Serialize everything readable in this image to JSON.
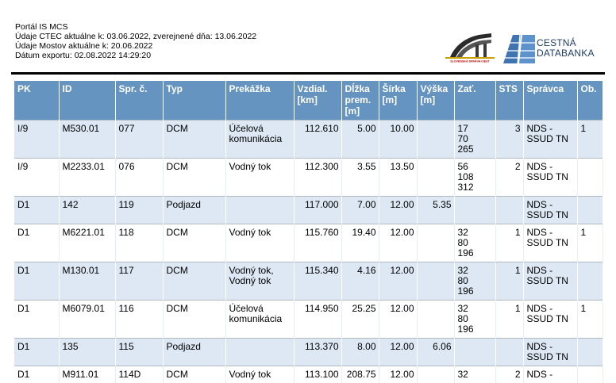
{
  "header": {
    "lines": [
      "Portál IS MCS",
      "Údaje CTEC aktuálne k: 03.06.2022, zverejnené dňa: 13.06.2022",
      "Údaje Mostov aktuálne k: 20.06.2022",
      "Dátum exportu: 02.08.2022 14:29:20"
    ]
  },
  "logos": {
    "sss_text": "SLOVENSKÁ SPRÁVA CIEST",
    "cdb_line1": "CESTNÁ",
    "cdb_line2": "DATABANKA",
    "brand_color": "#1f3e66"
  },
  "colors": {
    "header_bg": "#6694c0",
    "odd_row": "#dde8f4"
  },
  "table": {
    "columns": [
      "PK",
      "ID",
      "Spr. č.",
      "Typ",
      "Prekážka",
      "Vzdial. [km]",
      "Dĺžka prem. [m]",
      "Šírka [m]",
      "Výška [m]",
      "Zať.",
      "STS",
      "Správca",
      "Ob."
    ],
    "rows": [
      {
        "pk": "I/9",
        "id": "M530.01",
        "spr": "077",
        "typ": "DCM",
        "prekazka": "Účelová\nkomunikácia",
        "vzdial": "112.610",
        "dlzka": "5.00",
        "sirka": "10.00",
        "vyska": "",
        "zat": "17\n70\n265",
        "sts": "3",
        "spravca": "NDS -\nSSUD TN",
        "ob": "1"
      },
      {
        "pk": "I/9",
        "id": "M2233.01",
        "spr": "076",
        "typ": "DCM",
        "prekazka": "Vodný tok",
        "vzdial": "112.300",
        "dlzka": "3.55",
        "sirka": "13.50",
        "vyska": "",
        "zat": "56\n108\n312",
        "sts": "2",
        "spravca": "NDS -\nSSUD TN",
        "ob": ""
      },
      {
        "pk": "D1",
        "id": "142",
        "spr": "119",
        "typ": "Podjazd",
        "prekazka": "",
        "vzdial": "117.000",
        "dlzka": "7.00",
        "sirka": "12.00",
        "vyska": "5.35",
        "zat": "",
        "sts": "",
        "spravca": "NDS -\nSSUD TN",
        "ob": ""
      },
      {
        "pk": "D1",
        "id": "M6221.01",
        "spr": "118",
        "typ": "DCM",
        "prekazka": "Vodný tok",
        "vzdial": "115.760",
        "dlzka": "19.40",
        "sirka": "12.00",
        "vyska": "",
        "zat": "32\n80\n196",
        "sts": "1",
        "spravca": "NDS -\nSSUD TN",
        "ob": "1"
      },
      {
        "pk": "D1",
        "id": "M130.01",
        "spr": "117",
        "typ": "DCM",
        "prekazka": "Vodný tok,\nVodný tok",
        "vzdial": "115.340",
        "dlzka": "4.16",
        "sirka": "12.00",
        "vyska": "",
        "zat": "32\n80\n196",
        "sts": "1",
        "spravca": "NDS -\nSSUD TN",
        "ob": ""
      },
      {
        "pk": "D1",
        "id": "M6079.01",
        "spr": "116",
        "typ": "DCM",
        "prekazka": "Účelová\nkomunikácia",
        "vzdial": "114.950",
        "dlzka": "25.25",
        "sirka": "12.00",
        "vyska": "",
        "zat": "32\n80\n196",
        "sts": "1",
        "spravca": "NDS -\nSSUD TN",
        "ob": "1"
      },
      {
        "pk": "D1",
        "id": "135",
        "spr": "115",
        "typ": "Podjazd",
        "prekazka": "",
        "vzdial": "113.370",
        "dlzka": "8.00",
        "sirka": "12.00",
        "vyska": "6.06",
        "zat": "",
        "sts": "",
        "spravca": "NDS -\nSSUD TN",
        "ob": ""
      },
      {
        "pk": "D1",
        "id": "M911.01",
        "spr": "114D",
        "typ": "DCM",
        "prekazka": "Vodný tok",
        "vzdial": "113.100",
        "dlzka": "208.75",
        "sirka": "12.00",
        "vyska": "",
        "zat": "32",
        "sts": "2",
        "spravca": "NDS -",
        "ob": ""
      }
    ]
  }
}
